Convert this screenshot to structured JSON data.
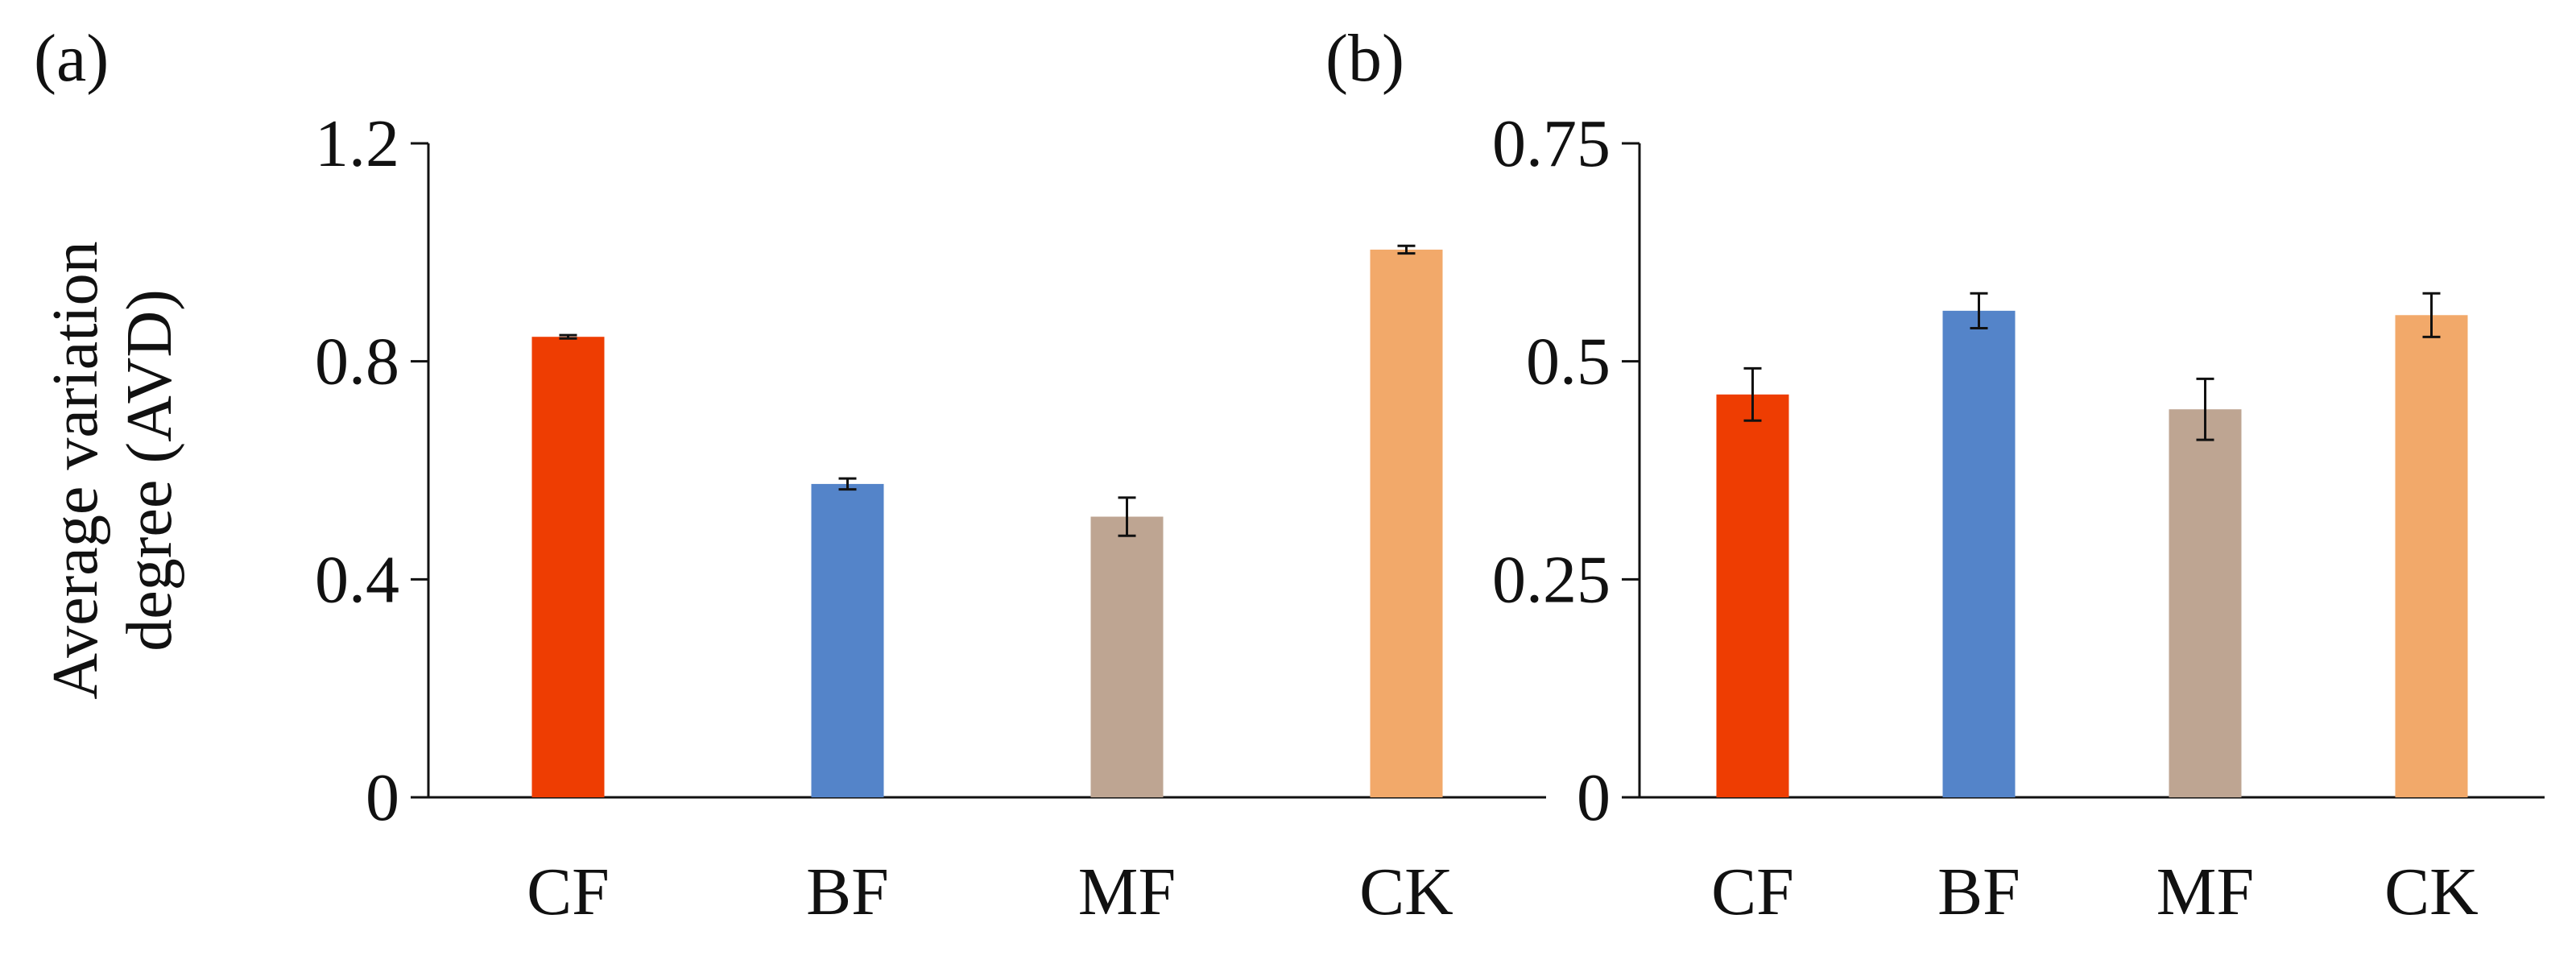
{
  "chart_data": [
    {
      "type": "bar",
      "panel": "(a)",
      "ylabel_lines": [
        "Average variation",
        "degree (AVD)"
      ],
      "categories": [
        "CF",
        "BF",
        "MF",
        "CK"
      ],
      "values": [
        0.845,
        0.575,
        0.515,
        1.005
      ],
      "errors": [
        0.003,
        0.01,
        0.035,
        0.007
      ],
      "colors": [
        "#EE3D02",
        "#5484C9",
        "#BEA592",
        "#F2A96A"
      ],
      "ylim": [
        0,
        1.2
      ],
      "yticks": [
        0,
        0.4,
        0.8,
        1.2
      ],
      "ytick_labels": [
        "0",
        "0.4",
        "0.8",
        "1.2"
      ]
    },
    {
      "type": "bar",
      "panel": "(b)",
      "ylabel_lines": [],
      "categories": [
        "CF",
        "BF",
        "MF",
        "CK"
      ],
      "values": [
        0.462,
        0.558,
        0.445,
        0.553
      ],
      "errors": [
        0.03,
        0.02,
        0.035,
        0.025
      ],
      "colors": [
        "#EE3D02",
        "#5484C9",
        "#BEA592",
        "#F2A96A"
      ],
      "ylim": [
        0,
        0.75
      ],
      "yticks": [
        0,
        0.25,
        0.5,
        0.75
      ],
      "ytick_labels": [
        "0",
        "0.25",
        "0.5",
        "0.75"
      ]
    }
  ]
}
